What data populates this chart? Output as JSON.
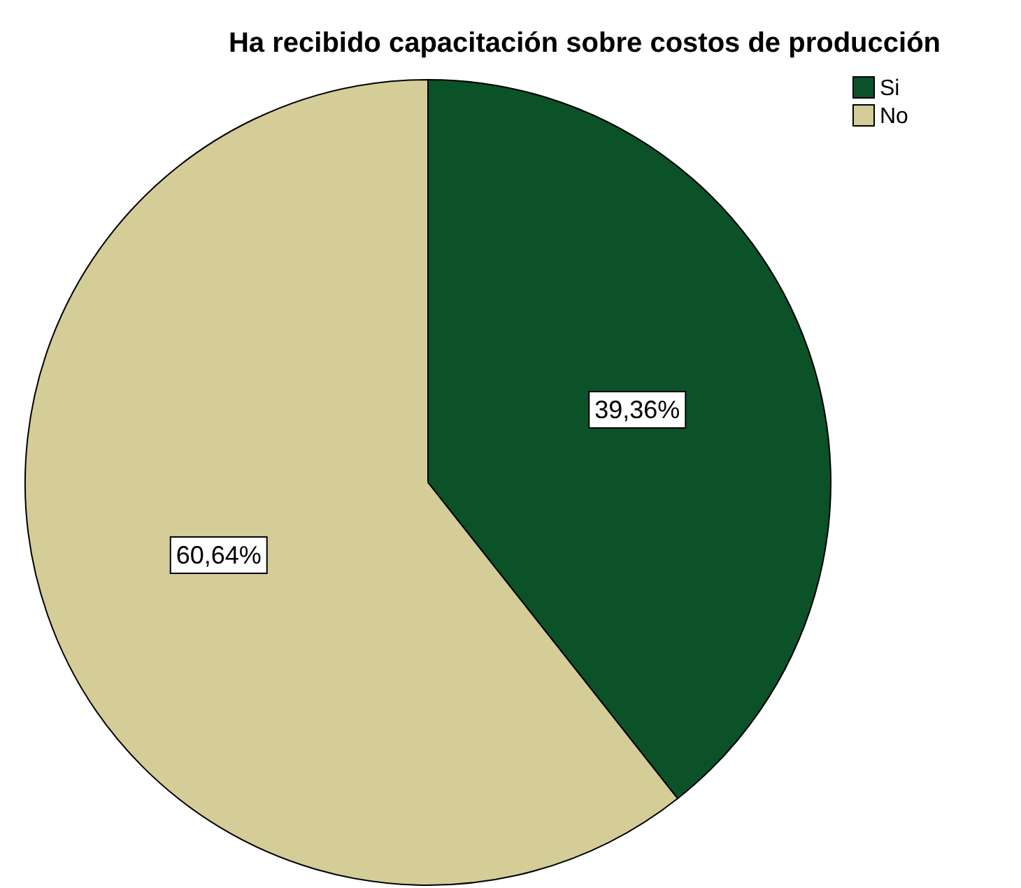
{
  "chart_data": {
    "type": "pie",
    "title": "Ha recibido capacitación sobre costos de producción",
    "categories": [
      "Si",
      "No"
    ],
    "values": [
      39.36,
      60.64
    ],
    "colors": [
      "#0b5229",
      "#d4cd98"
    ],
    "value_labels": [
      "39,36%",
      "60,64%"
    ],
    "legend": "top right"
  }
}
